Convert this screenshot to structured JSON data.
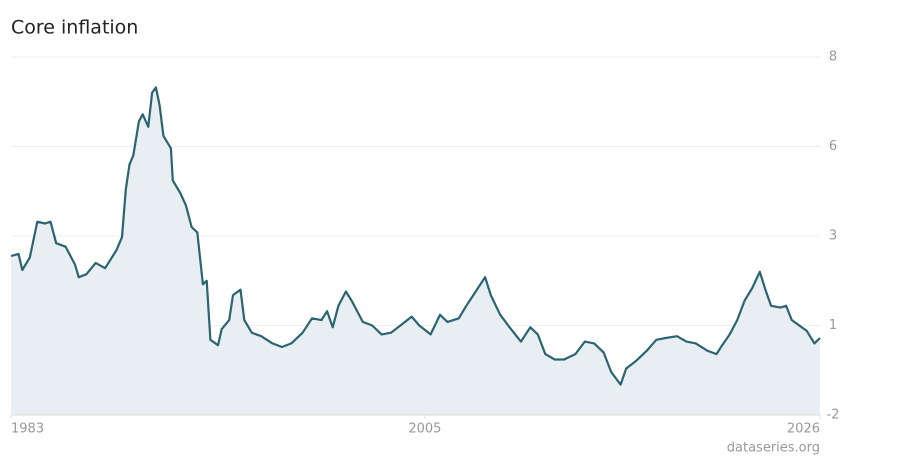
{
  "chart_data": {
    "type": "area",
    "title": "Core inflation",
    "source": "dataseries.org",
    "color": "#2b6472",
    "fill": "#e8eef1",
    "xlim": [
      1983,
      2026
    ],
    "xticks": [
      1983,
      2005,
      2026
    ],
    "ylim": [
      -2,
      8
    ],
    "yticks": [
      -2,
      {
        "value": 0.5,
        "label": "1"
      },
      3,
      {
        "value": 5.5,
        "label": "6"
      },
      8
    ],
    "grid": true,
    "x": [
      1983.0,
      1983.4,
      1983.6,
      1984.0,
      1984.4,
      1984.8,
      1985.1,
      1985.4,
      1985.9,
      1986.4,
      1986.6,
      1987.0,
      1987.5,
      1988.0,
      1988.6,
      1988.9,
      1989.1,
      1989.3,
      1989.5,
      1989.8,
      1990.0,
      1990.3,
      1990.5,
      1990.7,
      1990.9,
      1991.1,
      1991.5,
      1991.6,
      1992.0,
      1992.3,
      1992.6,
      1992.9,
      1993.2,
      1993.4,
      1993.6,
      1994.0,
      1994.2,
      1994.6,
      1994.8,
      1995.2,
      1995.4,
      1995.8,
      1996.3,
      1996.9,
      1997.4,
      1997.9,
      1998.5,
      1999.0,
      1999.5,
      1999.8,
      2000.1,
      2000.4,
      2000.8,
      2001.1,
      2001.7,
      2002.2,
      2002.7,
      2003.2,
      2003.7,
      2004.3,
      2004.7,
      2005.3,
      2005.8,
      2006.2,
      2006.8,
      2007.2,
      2007.7,
      2008.2,
      2008.5,
      2009.0,
      2009.5,
      2010.1,
      2010.6,
      2011.0,
      2011.4,
      2011.9,
      2012.4,
      2013.0,
      2013.5,
      2014.0,
      2014.5,
      2014.9,
      2015.4,
      2015.7,
      2016.2,
      2016.8,
      2017.3,
      2017.8,
      2018.4,
      2018.9,
      2019.4,
      2020.0,
      2020.5,
      2020.8,
      2021.2,
      2021.6,
      2022.0,
      2022.4,
      2022.8,
      2023.1,
      2023.4,
      2023.9,
      2024.2,
      2024.5,
      2024.9,
      2025.3,
      2025.7,
      2026.0
    ],
    "values": [
      2.44,
      2.5,
      2.05,
      2.4,
      3.4,
      3.35,
      3.4,
      2.8,
      2.7,
      2.2,
      1.85,
      1.93,
      2.25,
      2.1,
      2.6,
      2.97,
      4.3,
      5.0,
      5.25,
      6.2,
      6.4,
      6.05,
      7.0,
      7.15,
      6.65,
      5.8,
      5.45,
      4.55,
      4.2,
      3.85,
      3.25,
      3.1,
      1.65,
      1.75,
      0.1,
      -0.05,
      0.4,
      0.65,
      1.35,
      1.5,
      0.65,
      0.3,
      0.2,
      0.0,
      -0.1,
      0.0,
      0.3,
      0.7,
      0.65,
      0.9,
      0.45,
      1.05,
      1.45,
      1.2,
      0.6,
      0.5,
      0.25,
      0.3,
      0.5,
      0.75,
      0.5,
      0.25,
      0.8,
      0.6,
      0.7,
      1.05,
      1.45,
      1.85,
      1.35,
      0.8,
      0.45,
      0.05,
      0.45,
      0.25,
      -0.3,
      -0.45,
      -0.45,
      -0.3,
      0.05,
      0.0,
      -0.25,
      -0.8,
      -1.15,
      -0.7,
      -0.5,
      -0.2,
      0.1,
      0.15,
      0.2,
      0.05,
      0.0,
      -0.2,
      -0.3,
      -0.05,
      0.25,
      0.65,
      1.2,
      1.55,
      2.0,
      1.5,
      1.05,
      1.0,
      1.05,
      0.65,
      0.5,
      0.35,
      0.0,
      0.15
    ]
  }
}
